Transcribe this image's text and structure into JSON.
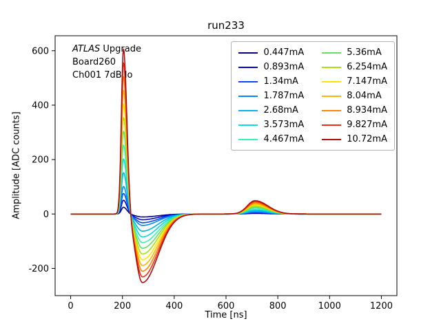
{
  "chart_data": {
    "type": "line",
    "title": "run233",
    "xlabel": "Time [ns]",
    "ylabel": "Amplitude [ADC counts]",
    "xlim": [
      -60,
      1260
    ],
    "ylim": [
      -300,
      655
    ],
    "x_ticks": [
      0,
      200,
      400,
      600,
      800,
      1000,
      1200
    ],
    "y_ticks": [
      -200,
      0,
      200,
      400,
      600
    ],
    "grid": false,
    "legend_position": "upper right",
    "legend_columns": 2,
    "annotation": {
      "line1_italic": "ATLAS",
      "line1_rest": " Upgrade",
      "line2": "Board260",
      "line3": "Ch001 7dB lo"
    },
    "waveform_shape": {
      "peak_center_ns": 204,
      "peak_sigma_left": 8,
      "peak_sigma_right": 13,
      "undershoot_center_ns": 277,
      "undershoot_sigma_left": 26,
      "undershoot_sigma_right": 60,
      "bump_center_ns": 712,
      "bump_sigma_left": 30,
      "bump_sigma_right": 50
    },
    "series": [
      {
        "name": "0.447mA",
        "color": "#000080",
        "peak": 25,
        "undershoot": -11,
        "bump": 2
      },
      {
        "name": "0.893mA",
        "color": "#0000cd",
        "peak": 51,
        "undershoot": -21,
        "bump": 4
      },
      {
        "name": "1.34mA",
        "color": "#0047ff",
        "peak": 76,
        "undershoot": -32,
        "bump": 6
      },
      {
        "name": "1.787mA",
        "color": "#0087ff",
        "peak": 102,
        "undershoot": -42,
        "bump": 8
      },
      {
        "name": "2.68mA",
        "color": "#00b3e6",
        "peak": 153,
        "undershoot": -63,
        "bump": 12
      },
      {
        "name": "3.573mA",
        "color": "#00e0dc",
        "peak": 204,
        "undershoot": -84,
        "bump": 16
      },
      {
        "name": "4.467mA",
        "color": "#3ef0b0",
        "peak": 255,
        "undershoot": -105,
        "bump": 21
      },
      {
        "name": "5.36mA",
        "color": "#62e25e",
        "peak": 306,
        "undershoot": -126,
        "bump": 25
      },
      {
        "name": "6.254mA",
        "color": "#a8e010",
        "peak": 357,
        "undershoot": -147,
        "bump": 29
      },
      {
        "name": "7.147mA",
        "color": "#ffe400",
        "peak": 407,
        "undershoot": -168,
        "bump": 33
      },
      {
        "name": "8.04mA",
        "color": "#ffb300",
        "peak": 458,
        "undershoot": -189,
        "bump": 37
      },
      {
        "name": "8.934mA",
        "color": "#ff8200",
        "peak": 509,
        "undershoot": -210,
        "bump": 41
      },
      {
        "name": "9.827mA",
        "color": "#f22c14",
        "peak": 560,
        "undershoot": -231,
        "bump": 45
      },
      {
        "name": "10.72mA",
        "color": "#aa0e0e",
        "peak": 611,
        "undershoot": -252,
        "bump": 49
      }
    ]
  }
}
